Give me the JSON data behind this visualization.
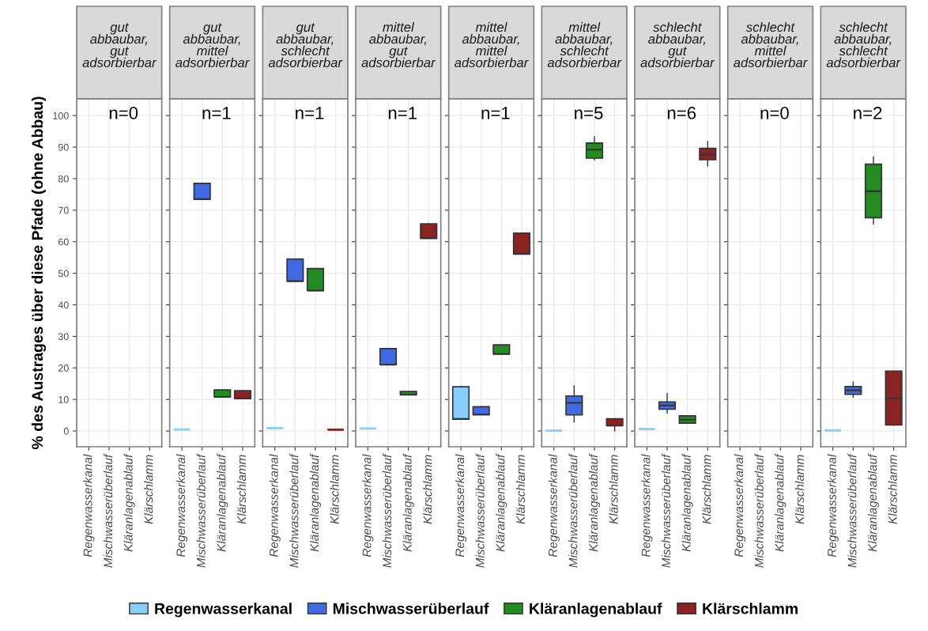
{
  "chart_data": [
    {
      "type": "box",
      "title": "gut\nabbaubar,\ngut\nadsorbierbar",
      "ylabel": "% des Austrages über diese Pfade (ohne Abbau)",
      "annotations": [
        "n=0"
      ],
      "categories": [
        "Regenwasserkanal",
        "Mischwasserüberlauf",
        "Kläranlagenablauf",
        "Klärschlamm"
      ],
      "ylim": [
        -5,
        105.3
      ],
      "yticks": [
        0,
        10,
        20,
        30,
        40,
        50,
        60,
        70,
        80,
        90,
        100
      ],
      "grid": true,
      "legend": "bottom",
      "series": [
        {
          "name": "Regenwasserkanal",
          "color": "#87cefa",
          "boxes": [
            null,
            null,
            null,
            null
          ]
        },
        {
          "name": "Mischwasserüberlauf",
          "color": "#4169e1",
          "boxes": [
            null,
            null,
            null,
            null
          ]
        },
        {
          "name": "Kläranlagenablauf",
          "color": "#228b22",
          "boxes": [
            null,
            null,
            null,
            null
          ]
        },
        {
          "name": "Klärschlamm",
          "color": "#8b2323",
          "boxes": [
            null,
            null,
            null,
            null
          ]
        }
      ]
    },
    {
      "type": "box",
      "title": "gut\nabbaubar,\nmittel\nadsorbierbar",
      "annotations": [
        "n=1"
      ],
      "categories": [
        "Regenwasserkanal",
        "Mischwasserüberlauf",
        "Kläranlagenablauf",
        "Klärschlamm"
      ],
      "ylim": [
        -5,
        105.3
      ],
      "yticks": [
        0,
        10,
        20,
        30,
        40,
        50,
        60,
        70,
        80,
        90,
        100
      ],
      "grid": true,
      "tick_labels": "x",
      "series": [
        {
          "color": "#87cefa",
          "boxes": [
            {
              "low": 0.5,
              "q1": 0.5,
              "median": 0.5,
              "q3": 0.5,
              "high": 0.5
            },
            null,
            null,
            null
          ]
        },
        {
          "color": "#4169e1",
          "boxes": [
            null,
            {
              "low": 73.5,
              "q1": 73.5,
              "median": 73.5,
              "q3": 78.5,
              "high": 78.5
            },
            null,
            null
          ]
        },
        {
          "color": "#228b22",
          "boxes": [
            null,
            null,
            {
              "low": 10.8,
              "q1": 10.8,
              "median": 10.8,
              "q3": 13,
              "high": 13
            },
            null
          ]
        },
        {
          "color": "#8b2323",
          "boxes": [
            null,
            null,
            null,
            {
              "low": 10.3,
              "q1": 10.3,
              "median": 10.3,
              "q3": 12.8,
              "high": 12.8
            }
          ]
        }
      ]
    },
    {
      "type": "box",
      "title": "gut\nabbaubar,\nschlecht\nadsorbierbar",
      "annotations": [
        "n=1"
      ],
      "categories": [
        "Regenwasserkanal",
        "Mischwasserüberlauf",
        "Kläranlagenablauf",
        "Klärschlamm"
      ],
      "ylim": [
        -5,
        105.3
      ],
      "yticks": [
        0,
        10,
        20,
        30,
        40,
        50,
        60,
        70,
        80,
        90,
        100
      ],
      "grid": true,
      "tick_labels": "x",
      "series": [
        {
          "color": "#87cefa",
          "boxes": [
            {
              "low": 0.9,
              "q1": 0.9,
              "median": 0.9,
              "q3": 0.9,
              "high": 0.9
            },
            null,
            null,
            null
          ]
        },
        {
          "color": "#4169e1",
          "boxes": [
            null,
            {
              "low": 47.5,
              "q1": 47.5,
              "median": 47.5,
              "q3": 54.5,
              "high": 54.5
            },
            null,
            null
          ]
        },
        {
          "color": "#228b22",
          "boxes": [
            null,
            null,
            {
              "low": 44.5,
              "q1": 44.5,
              "median": 44.5,
              "q3": 51.5,
              "high": 51.5
            },
            null
          ]
        },
        {
          "color": "#8b2323",
          "boxes": [
            null,
            null,
            null,
            {
              "low": 0.4,
              "q1": 0.4,
              "median": 0.4,
              "q3": 0.4,
              "high": 0.4
            }
          ]
        }
      ]
    },
    {
      "type": "box",
      "title": "mittel\nabbaubar,\ngut\nadsorbierbar",
      "annotations": [
        "n=1"
      ],
      "categories": [
        "Regenwasserkanal",
        "Mischwasserüberlauf",
        "Kläranlagenablauf",
        "Klärschlamm"
      ],
      "ylim": [
        -5,
        105.3
      ],
      "yticks": [
        0,
        10,
        20,
        30,
        40,
        50,
        60,
        70,
        80,
        90,
        100
      ],
      "grid": true,
      "tick_labels": "x",
      "series": [
        {
          "color": "#87cefa",
          "boxes": [
            {
              "low": 0.8,
              "q1": 0.8,
              "median": 0.8,
              "q3": 0.8,
              "high": 0.8
            },
            null,
            null,
            null
          ]
        },
        {
          "color": "#4169e1",
          "boxes": [
            null,
            {
              "low": 21,
              "q1": 21,
              "median": 21,
              "q3": 26.1,
              "high": 26.1
            },
            null,
            null
          ]
        },
        {
          "color": "#228b22",
          "boxes": [
            null,
            null,
            {
              "low": 11.5,
              "q1": 11.5,
              "median": 11.5,
              "q3": 12.5,
              "high": 12.5
            },
            null
          ]
        },
        {
          "color": "#8b2323",
          "boxes": [
            null,
            null,
            null,
            {
              "low": 61.1,
              "q1": 61.1,
              "median": 61.1,
              "q3": 65.7,
              "high": 65.7
            }
          ]
        }
      ]
    },
    {
      "type": "box",
      "title": "mittel\nabbaubar,\nmittel\nadsorbierbar",
      "annotations": [
        "n=1"
      ],
      "categories": [
        "Regenwasserkanal",
        "Mischwasserüberlauf",
        "Kläranlagenablauf",
        "Klärschlamm"
      ],
      "ylim": [
        -5,
        105.3
      ],
      "yticks": [
        0,
        10,
        20,
        30,
        40,
        50,
        60,
        70,
        80,
        90,
        100
      ],
      "grid": true,
      "tick_labels": "x",
      "series": [
        {
          "color": "#87cefa",
          "boxes": [
            {
              "low": 3.8,
              "q1": 3.8,
              "median": 3.8,
              "q3": 14,
              "high": 14
            },
            null,
            null,
            null
          ]
        },
        {
          "color": "#4169e1",
          "boxes": [
            null,
            {
              "low": 5.2,
              "q1": 5.2,
              "median": 5.2,
              "q3": 7.7,
              "high": 7.7
            },
            null,
            null
          ]
        },
        {
          "color": "#228b22",
          "boxes": [
            null,
            null,
            {
              "low": 24.4,
              "q1": 24.4,
              "median": 24.4,
              "q3": 27.3,
              "high": 27.3
            },
            null
          ]
        },
        {
          "color": "#8b2323",
          "boxes": [
            null,
            null,
            null,
            {
              "low": 56.1,
              "q1": 56.1,
              "median": 56.1,
              "q3": 62.7,
              "high": 62.7
            }
          ]
        }
      ]
    },
    {
      "type": "box",
      "title": "mittel\nabbaubar,\nschlecht\nadsorbierbar",
      "annotations": [
        "n=5"
      ],
      "categories": [
        "Regenwasserkanal",
        "Mischwasserüberlauf",
        "Kläranlagenablauf",
        "Klärschlamm"
      ],
      "ylim": [
        -5,
        105.3
      ],
      "yticks": [
        0,
        10,
        20,
        30,
        40,
        50,
        60,
        70,
        80,
        90,
        100
      ],
      "grid": true,
      "tick_labels": "x",
      "series": [
        {
          "color": "#87cefa",
          "boxes": [
            {
              "low": 0.1,
              "q1": 0.1,
              "median": 0.1,
              "q3": 0.1,
              "high": 0.1
            },
            null,
            null,
            null
          ]
        },
        {
          "color": "#4169e1",
          "boxes": [
            null,
            {
              "low": 2.9,
              "q1": 5.1,
              "median": 8.9,
              "q3": 11.1,
              "high": 14.3
            },
            null,
            null
          ]
        },
        {
          "color": "#228b22",
          "boxes": [
            null,
            null,
            {
              "low": 85.9,
              "q1": 86.5,
              "median": 89.2,
              "q3": 91.3,
              "high": 93.3
            },
            null
          ]
        },
        {
          "color": "#8b2323",
          "boxes": [
            null,
            null,
            null,
            {
              "low": 0,
              "q1": 1.7,
              "median": 1.7,
              "q3": 3.9,
              "high": 3.9
            }
          ]
        }
      ]
    },
    {
      "type": "box",
      "title": "schlecht\nabbaubar,\ngut\nadsorbierbar",
      "annotations": [
        "n=6"
      ],
      "categories": [
        "Regenwasserkanal",
        "Mischwasserüberlauf",
        "Kläranlagenablauf",
        "Klärschlamm"
      ],
      "ylim": [
        -5,
        105.3
      ],
      "yticks": [
        0,
        10,
        20,
        30,
        40,
        50,
        60,
        70,
        80,
        90,
        100
      ],
      "grid": true,
      "tick_labels": "x",
      "series": [
        {
          "color": "#87cefa",
          "boxes": [
            {
              "low": 0.6,
              "q1": 0.6,
              "median": 0.6,
              "q3": 0.6,
              "high": 0.6
            },
            null,
            null,
            null
          ]
        },
        {
          "color": "#4169e1",
          "boxes": [
            null,
            {
              "low": 5.7,
              "q1": 6.9,
              "median": 8.1,
              "q3": 9.2,
              "high": 11.9
            },
            null,
            null
          ]
        },
        {
          "color": "#228b22",
          "boxes": [
            null,
            null,
            {
              "low": 2.5,
              "q1": 2.5,
              "median": 3.6,
              "q3": 4.8,
              "high": 4.8
            },
            null
          ]
        },
        {
          "color": "#8b2323",
          "boxes": [
            null,
            null,
            null,
            {
              "low": 84,
              "q1": 86,
              "median": 87.6,
              "q3": 89.6,
              "high": 91.8
            }
          ]
        }
      ]
    },
    {
      "type": "box",
      "title": "schlecht\nabbaubar,\nmittel\nadsorbierbar",
      "annotations": [
        "n=0"
      ],
      "categories": [
        "Regenwasserkanal",
        "Mischwasserüberlauf",
        "Kläranlagenablauf",
        "Klärschlamm"
      ],
      "ylim": [
        -5,
        105.3
      ],
      "yticks": [
        0,
        10,
        20,
        30,
        40,
        50,
        60,
        70,
        80,
        90,
        100
      ],
      "grid": true,
      "tick_labels": "x",
      "boxes": [
        null,
        null,
        null,
        null
      ]
    },
    {
      "type": "box",
      "title": "schlecht\nabbaubar,\nschlecht\nadsorbierbar",
      "annotations": [
        "n=2"
      ],
      "categories": [
        "Regenwasserkanal",
        "Mischwasserüberlauf",
        "Kläranlagenablauf",
        "Klärschlamm"
      ],
      "ylim": [
        -5,
        105.3
      ],
      "yticks": [
        0,
        10,
        20,
        30,
        40,
        50,
        60,
        70,
        80,
        90,
        100
      ],
      "grid": true,
      "tick_labels": "x",
      "series": [
        {
          "color": "#87cefa",
          "boxes": [
            {
              "low": 0.2,
              "q1": 0.2,
              "median": 0.2,
              "q3": 0.2,
              "high": 0.2
            },
            null,
            null,
            null
          ]
        },
        {
          "color": "#4169e1",
          "boxes": [
            null,
            {
              "low": 10.7,
              "q1": 11.6,
              "median": 12.9,
              "q3": 14.1,
              "high": 15.5
            },
            null,
            null
          ]
        },
        {
          "color": "#228b22",
          "boxes": [
            null,
            null,
            {
              "low": 65.6,
              "q1": 67.6,
              "median": 76,
              "q3": 84.6,
              "high": 86.9
            },
            null
          ]
        },
        {
          "color": "#8b2323",
          "boxes": [
            null,
            null,
            null,
            {
              "low": 1.9,
              "q1": 1.9,
              "median": 10.4,
              "q3": 19,
              "high": 19
            }
          ]
        }
      ]
    }
  ]
}
